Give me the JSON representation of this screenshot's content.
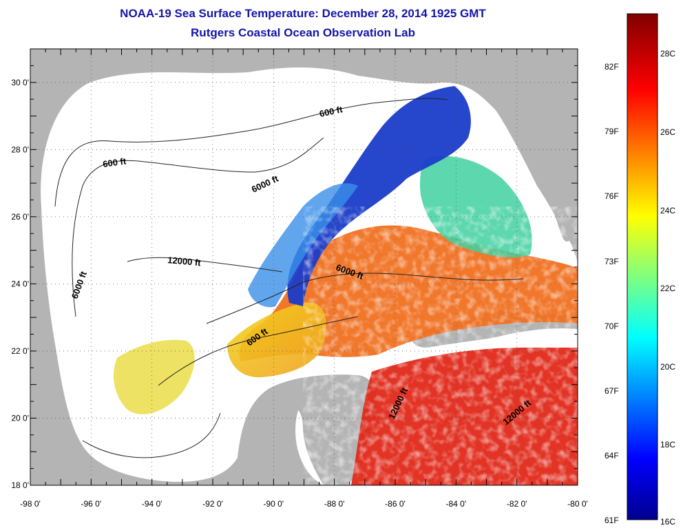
{
  "title": "NOAA-19 Sea Surface Temperature:  December 28, 2014 1925 GMT",
  "subtitle": "Rutgers Coastal Ocean Observation Lab",
  "map": {
    "lon_range": [
      -98,
      -80
    ],
    "lat_range": [
      18,
      31
    ],
    "lon_ticks": [
      "-98 0'",
      "-96 0'",
      "-94 0'",
      "-92 0'",
      "-90 0'",
      "-88 0'",
      "-86 0'",
      "-84 0'",
      "-82 0'",
      "-80 0'"
    ],
    "lat_ticks": [
      "18 0'",
      "20 0'",
      "22 0'",
      "24 0'",
      "26 0'",
      "28 0'",
      "30 0'"
    ],
    "contour_labels": [
      "600 ft",
      "600 ft",
      "6000 ft",
      "12000 ft",
      "6000 ft",
      "6000 ft",
      "600 ft",
      "12000 ft",
      "12000 ft"
    ],
    "colors": {
      "land": "#b4b4b4",
      "no_data": "#ffffff",
      "cold": "#1a3cc8",
      "warm": "#e84818"
    }
  },
  "colorbar": {
    "fahrenheit_labels": [
      "82F",
      "79F",
      "76F",
      "73F",
      "70F",
      "67F",
      "64F",
      "61F"
    ],
    "celsius_labels": [
      "28C",
      "26C",
      "24C",
      "22C",
      "20C",
      "18C",
      "16C"
    ],
    "range_c": [
      16,
      29.5
    ]
  }
}
